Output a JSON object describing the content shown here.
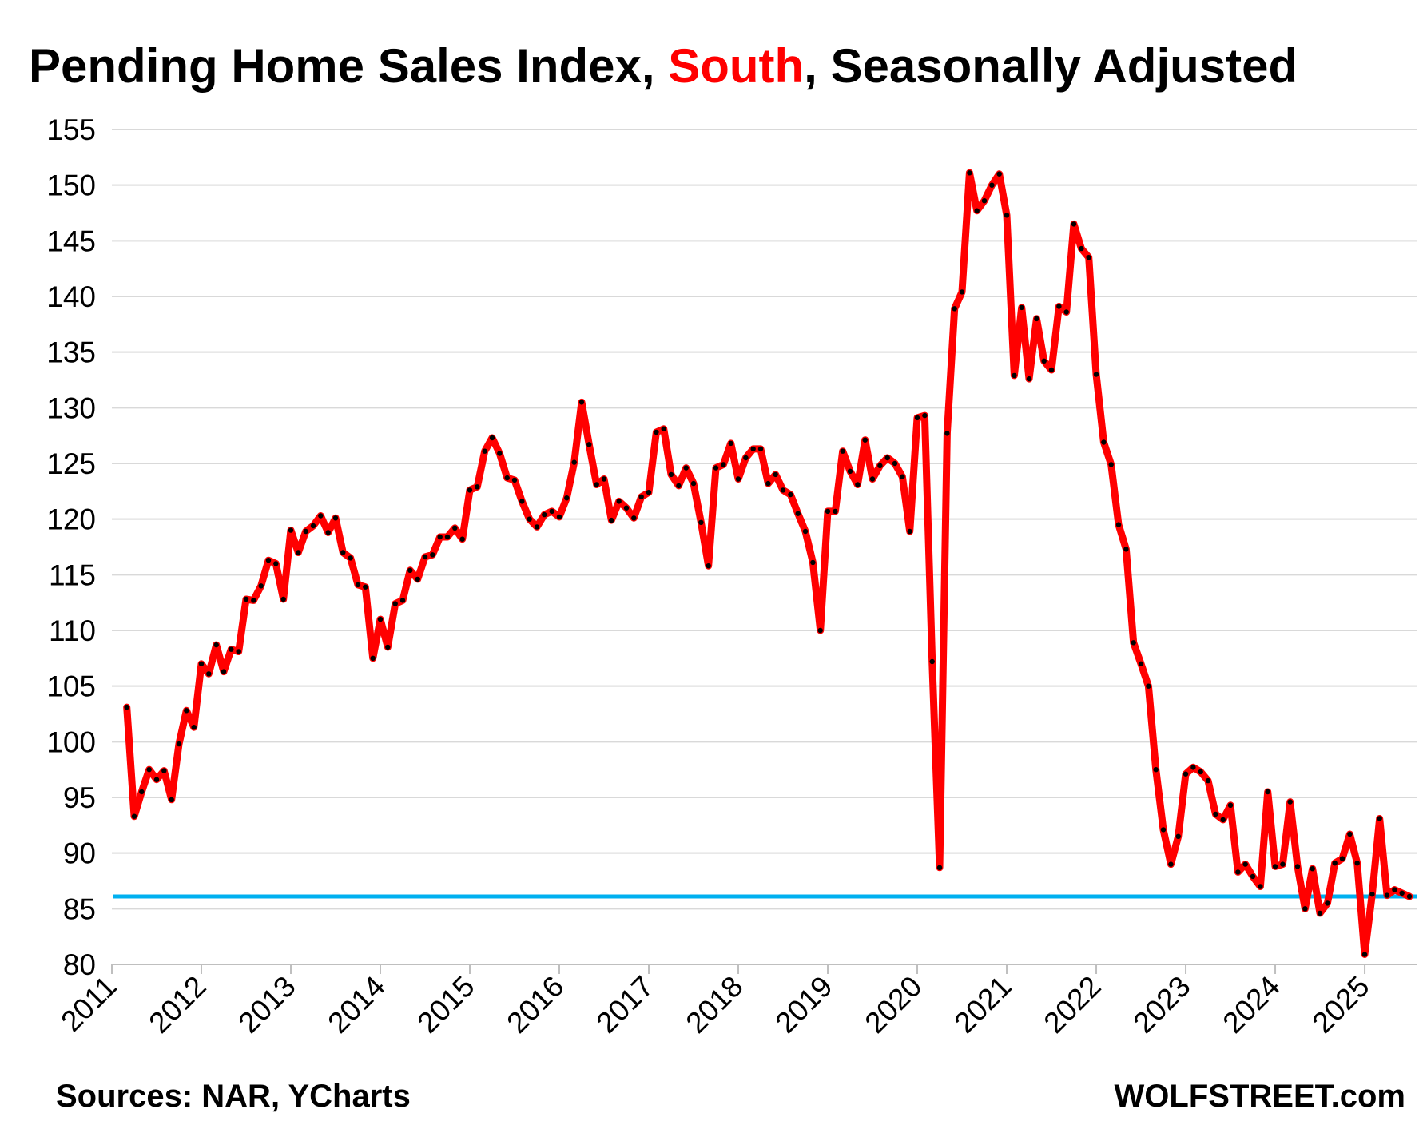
{
  "title": {
    "prefix": "Pending Home Sales Index, ",
    "highlight": "South",
    "suffix": ", Seasonally Adjusted"
  },
  "footer": {
    "source": "Sources: NAR, YCharts",
    "brand": "WOLFSTREET.com"
  },
  "colors": {
    "series_line": "#ff0000",
    "series_markers": "#000000",
    "reference_line": "#00b0f0",
    "title_highlight": "#ff0000",
    "gridline": "#d9d9d9"
  },
  "chart_data": {
    "type": "line",
    "title": "Pending Home Sales Index, South, Seasonally Adjusted",
    "xlabel": "",
    "ylabel": "",
    "ylim": [
      80,
      155
    ],
    "yticks": [
      80,
      85,
      90,
      95,
      100,
      105,
      110,
      115,
      120,
      125,
      130,
      135,
      140,
      145,
      150,
      155
    ],
    "xlim": [
      2011,
      2025.58
    ],
    "xticks": [
      2011,
      2012,
      2013,
      2014,
      2015,
      2016,
      2017,
      2018,
      2019,
      2020,
      2021,
      2022,
      2023,
      2024,
      2025
    ],
    "grid": "horizontal",
    "legend": "none",
    "start": "2011-03",
    "frequency": "monthly",
    "series": [
      {
        "values": [
          103.1,
          93.3,
          95.5,
          97.5,
          96.6,
          97.4,
          94.8,
          99.8,
          102.8,
          101.3,
          107.0,
          106.1,
          108.7,
          106.3,
          108.3,
          108.1,
          112.8,
          112.7,
          114.0,
          116.3,
          116.0,
          112.8,
          119.0,
          117.0,
          118.9,
          119.4,
          120.3,
          118.8,
          120.1,
          117.0,
          116.5,
          114.1,
          113.9,
          107.5,
          111.0,
          108.5,
          112.4,
          112.7,
          115.4,
          114.6,
          116.6,
          116.8,
          118.4,
          118.4,
          119.2,
          118.2,
          122.6,
          122.9,
          126.1,
          127.3,
          125.9,
          123.7,
          123.5,
          121.6,
          120.0,
          119.3,
          120.4,
          120.7,
          120.2,
          121.9,
          125.1,
          130.5,
          126.7,
          123.1,
          123.6,
          119.9,
          121.6,
          121.0,
          120.1,
          122.0,
          122.4,
          127.8,
          128.1,
          124.0,
          123.0,
          124.6,
          123.2,
          119.7,
          115.8,
          124.6,
          124.9,
          126.8,
          123.6,
          125.5,
          126.3,
          126.3,
          123.2,
          124.0,
          122.6,
          122.2,
          120.5,
          118.9,
          116.1,
          110.0,
          120.7,
          120.7,
          126.1,
          124.3,
          123.1,
          127.1,
          123.6,
          124.8,
          125.5,
          125.0,
          123.8,
          118.9,
          129.1,
          129.3,
          107.2,
          88.7,
          127.7,
          138.9,
          140.4,
          151.1,
          147.7,
          148.6,
          150.0,
          151.0,
          147.3,
          132.9,
          139.0,
          132.6,
          138.0,
          134.2,
          133.4,
          139.1,
          138.6,
          146.5,
          144.3,
          143.5,
          133.0,
          126.9,
          124.9,
          119.5,
          117.3,
          108.9,
          107.0,
          105.0,
          97.5,
          92.1,
          89.0,
          91.5,
          97.1,
          97.7,
          97.3,
          96.5,
          93.5,
          93.0,
          94.3,
          88.3,
          89.0,
          87.9,
          87.0,
          95.5,
          88.8,
          89.0,
          94.6,
          88.8,
          85.0,
          88.6,
          84.6,
          85.5,
          89.1,
          89.5,
          91.7,
          89.1,
          80.9,
          86.3,
          93.1,
          86.2,
          86.7,
          86.4,
          86.1
        ]
      }
    ],
    "reference_line": {
      "y": 86.1
    }
  }
}
